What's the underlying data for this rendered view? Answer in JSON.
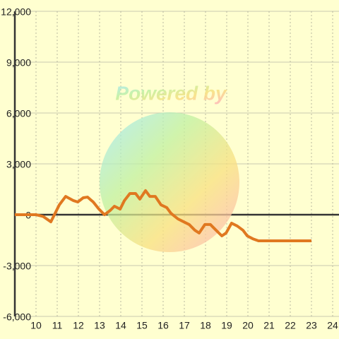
{
  "chart_data": {
    "type": "line",
    "watermark": "Powered by",
    "x": [
      9,
      10,
      10.33,
      10.7,
      11.1,
      11.4,
      11.77,
      11.97,
      12.23,
      12.43,
      12.7,
      12.97,
      13.23,
      13.5,
      13.7,
      13.97,
      14.17,
      14.43,
      14.7,
      14.9,
      15.17,
      15.37,
      15.63,
      15.9,
      16.17,
      16.37,
      16.7,
      16.97,
      17.23,
      17.5,
      17.7,
      17.97,
      18.23,
      18.5,
      18.77,
      18.97,
      19.23,
      19.5,
      19.77,
      19.97,
      20.23,
      20.5,
      23
    ],
    "series": [
      {
        "color": "#e07820",
        "values": [
          0,
          0,
          -100,
          -420,
          580,
          1080,
          830,
          750,
          1000,
          1040,
          750,
          330,
          0,
          250,
          500,
          330,
          830,
          1250,
          1250,
          920,
          1420,
          1080,
          1080,
          580,
          420,
          80,
          -250,
          -420,
          -580,
          -920,
          -1080,
          -580,
          -580,
          -920,
          -1250,
          -1080,
          -500,
          -670,
          -920,
          -1250,
          -1420,
          -1540,
          -1540
        ]
      }
    ],
    "xlim": [
      9,
      24.3
    ],
    "xticks": [
      10,
      11,
      12,
      13,
      14,
      15,
      16,
      17,
      18,
      19,
      20,
      21,
      22,
      23,
      24
    ],
    "ylim": [
      -6000,
      12000
    ],
    "yticks": [
      {
        "value": -6000,
        "label": "-6,000"
      },
      {
        "value": -3000,
        "label": "-3,000"
      },
      0,
      {
        "value": 3000,
        "label": "3,000"
      },
      {
        "value": 6000,
        "label": "6,000"
      },
      {
        "value": 9000,
        "label": "9,000"
      },
      {
        "value": 12000,
        "label": "12,000"
      }
    ],
    "grid": true
  }
}
